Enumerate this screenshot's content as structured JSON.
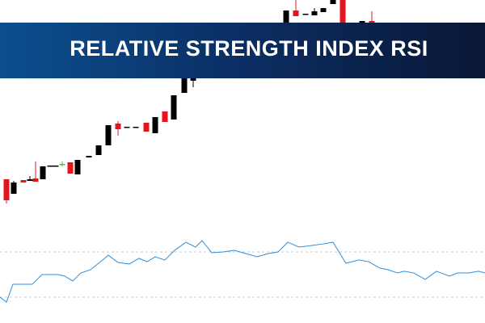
{
  "chart_data": [
    {
      "type": "candlestick",
      "title": "RELATIVE STRENGTH INDEX RSI",
      "x": [
        8,
        17,
        29,
        37,
        44,
        53,
        62,
        69,
        77,
        87,
        96,
        110,
        122,
        134,
        146,
        157,
        168,
        181,
        192,
        204,
        215,
        228,
        239,
        354,
        366,
        378,
        389,
        400,
        412,
        424,
        436,
        448,
        460
      ],
      "open": [
        178,
        160,
        177,
        176,
        179,
        178,
        195,
        195,
        197,
        199,
        184,
        205,
        208,
        220,
        247,
        243,
        243,
        248,
        235,
        262,
        252,
        285,
        300,
        372,
        387,
        383,
        381,
        385,
        395,
        400,
        360,
        372,
        374
      ],
      "high": [
        178,
        176,
        177,
        182,
        200,
        194,
        195,
        195,
        200,
        199,
        202,
        207,
        220,
        245,
        250,
        243,
        243,
        248,
        255,
        262,
        282,
        310,
        312,
        387,
        400,
        383,
        390,
        390,
        400,
        400,
        372,
        374,
        386
      ],
      "low": [
        148,
        160,
        174,
        176,
        175,
        178,
        195,
        195,
        194,
        185,
        184,
        205,
        208,
        220,
        232,
        243,
        243,
        237,
        235,
        249,
        252,
        285,
        292,
        365,
        380,
        383,
        381,
        385,
        395,
        370,
        360,
        372,
        370
      ],
      "close": [
        152,
        174,
        174,
        178,
        175,
        194,
        195,
        195,
        197,
        185,
        202,
        207,
        220,
        245,
        240,
        243,
        243,
        237,
        255,
        249,
        282,
        303,
        310,
        387,
        380,
        383,
        386,
        390,
        400,
        370,
        372,
        374,
        370
      ],
      "colors": [
        "#e8141c",
        "#000000",
        "#e8141c",
        "#000000",
        "#e8141c",
        "#000000",
        "#000000",
        "#000000",
        "#2ecc40",
        "#e8141c",
        "#000000",
        "#000000",
        "#000000",
        "#000000",
        "#e8141c",
        "#000000",
        "#000000",
        "#e8141c",
        "#000000",
        "#e8141c",
        "#000000",
        "#000000",
        "#000000",
        "#000000",
        "#e8141c",
        "#000000",
        "#000000",
        "#000000",
        "#000000",
        "#e8141c",
        "#000000",
        "#000000",
        "#e8141c"
      ],
      "xlim": [
        0,
        600
      ],
      "ylim": [
        140,
        400
      ]
    },
    {
      "type": "line",
      "x": [
        0,
        8,
        16,
        40,
        52,
        72,
        80,
        90,
        100,
        112,
        122,
        134,
        146,
        160,
        172,
        182,
        192,
        204,
        216,
        230,
        242,
        250,
        262,
        276,
        290,
        304,
        318,
        332,
        344,
        356,
        370,
        386,
        400,
        412,
        428,
        444,
        456,
        470,
        480,
        492,
        500,
        512,
        526,
        540,
        556,
        566,
        580,
        592,
        600
      ],
      "series": [
        {
          "color": "#2f8fdc",
          "values": [
            30,
            25.7,
            41.4,
            41.4,
            50,
            50,
            48.6,
            44.3,
            51.4,
            54.3,
            60,
            67.1,
            60.7,
            59.3,
            64.3,
            61.4,
            65.7,
            62.9,
            71.4,
            78.6,
            74.3,
            80,
            69.3,
            70,
            71.4,
            68.6,
            65.7,
            68.6,
            70,
            78.6,
            74.3,
            75.7,
            77.1,
            78.6,
            60,
            62.9,
            61.4,
            55.7,
            54.3,
            51.4,
            52.9,
            51.4,
            45.7,
            52.9,
            48.6,
            51.4,
            51.4,
            52.9,
            51.4
          ]
        }
      ],
      "levels": [
        30,
        70
      ],
      "xlim": [
        0,
        600
      ],
      "ylim": [
        10,
        100
      ]
    }
  ]
}
